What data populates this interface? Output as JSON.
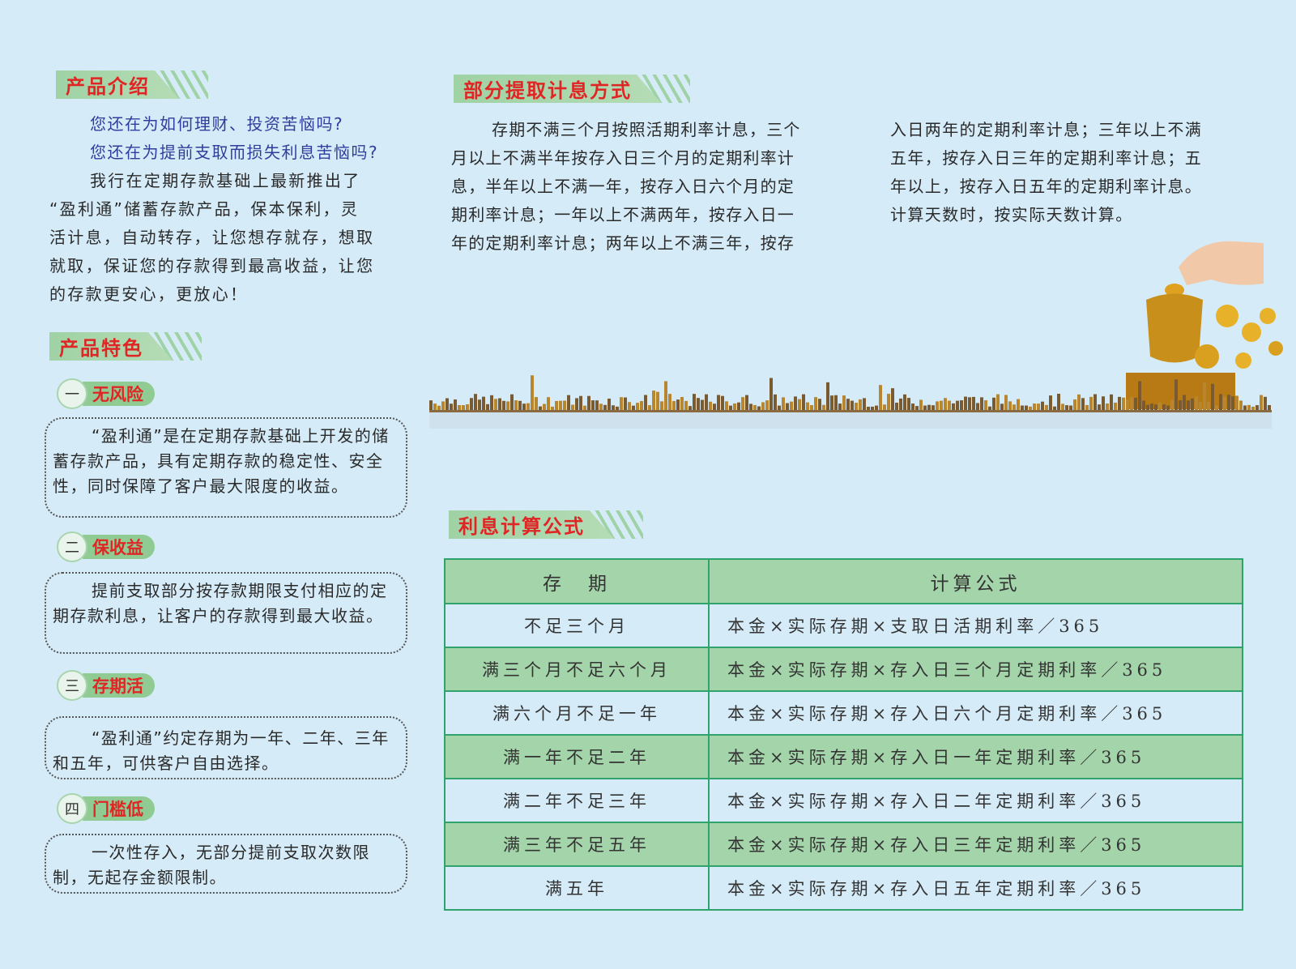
{
  "intro": {
    "title": "产品介绍",
    "questions": [
      "您还在为如何理财、投资苦恼吗?",
      "您还在为提前支取而损失利息苦恼吗?"
    ],
    "lines": [
      "我行在定期存款基础上最新推出了",
      "“盈利通”储蓄存款产品，保本保利，灵",
      "活计息，自动转存，让您想存就存，想取",
      "就取，保证您的存款得到最高收益，让您",
      "的存款更安心，更放心！"
    ]
  },
  "features": {
    "title": "产品特色",
    "items": [
      {
        "num": "一",
        "label": "无风险",
        "text": "“盈利通”是在定期存款基础上开发的储蓄存款产品，具有定期存款的稳定性、安全性，同时保障了客户最大限度的收益。"
      },
      {
        "num": "二",
        "label": "保收益",
        "text": "提前支取部分按存款期限支付相应的定期存款利息，让客户的存款得到最大收益。"
      },
      {
        "num": "三",
        "label": "存期活",
        "text": "“盈利通”约定存期为一年、二年、三年和五年，可供客户自由选择。"
      },
      {
        "num": "四",
        "label": "门槛低",
        "text": "一次性存入，无部分提前支取次数限制，无起存金额限制。"
      }
    ]
  },
  "partial": {
    "title": "部分提取计息方式",
    "col1": [
      "存期不满三个月按照活期利率计息，三个",
      "月以上不满半年按存入日三个月的定期利率计",
      "息，半年以上不满一年，按存入日六个月的定",
      "期利率计息；一年以上不满两年，按存入日一",
      "年的定期利率计息；两年以上不满三年，按存"
    ],
    "col2": [
      "入日两年的定期利率计息；三年以上不满",
      "五年，按存入日三年的定期利率计息；五",
      "年以上，按存入日五年的定期利率计息。",
      "计算天数时，按实际天数计算。"
    ]
  },
  "formula": {
    "title": "利息计算公式",
    "headers": [
      "存　期",
      "计算公式"
    ],
    "rows": [
      [
        "不足三个月",
        "本金×实际存期×支取日活期利率／365"
      ],
      [
        "满三个月不足六个月",
        "本金×实际存期×存入日三个月定期利率／365"
      ],
      [
        "满六个月不足一年",
        "本金×实际存期×存入日六个月定期利率／365"
      ],
      [
        "满一年不足二年",
        "本金×实际存期×存入日一年定期利率／365"
      ],
      [
        "满二年不足三年",
        "本金×实际存期×存入日二年定期利率／365"
      ],
      [
        "满三年不足五年",
        "本金×实际存期×存入日三年定期利率／365"
      ],
      [
        "满五年",
        "本金×实际存期×存入日五年定期利率／365"
      ]
    ]
  },
  "colors": {
    "background": "#d5ebf8",
    "title_red": "#e02525",
    "header_green": "#a4d4a9",
    "border_green": "#2fa36b",
    "question_blue": "#2f3e9c"
  }
}
